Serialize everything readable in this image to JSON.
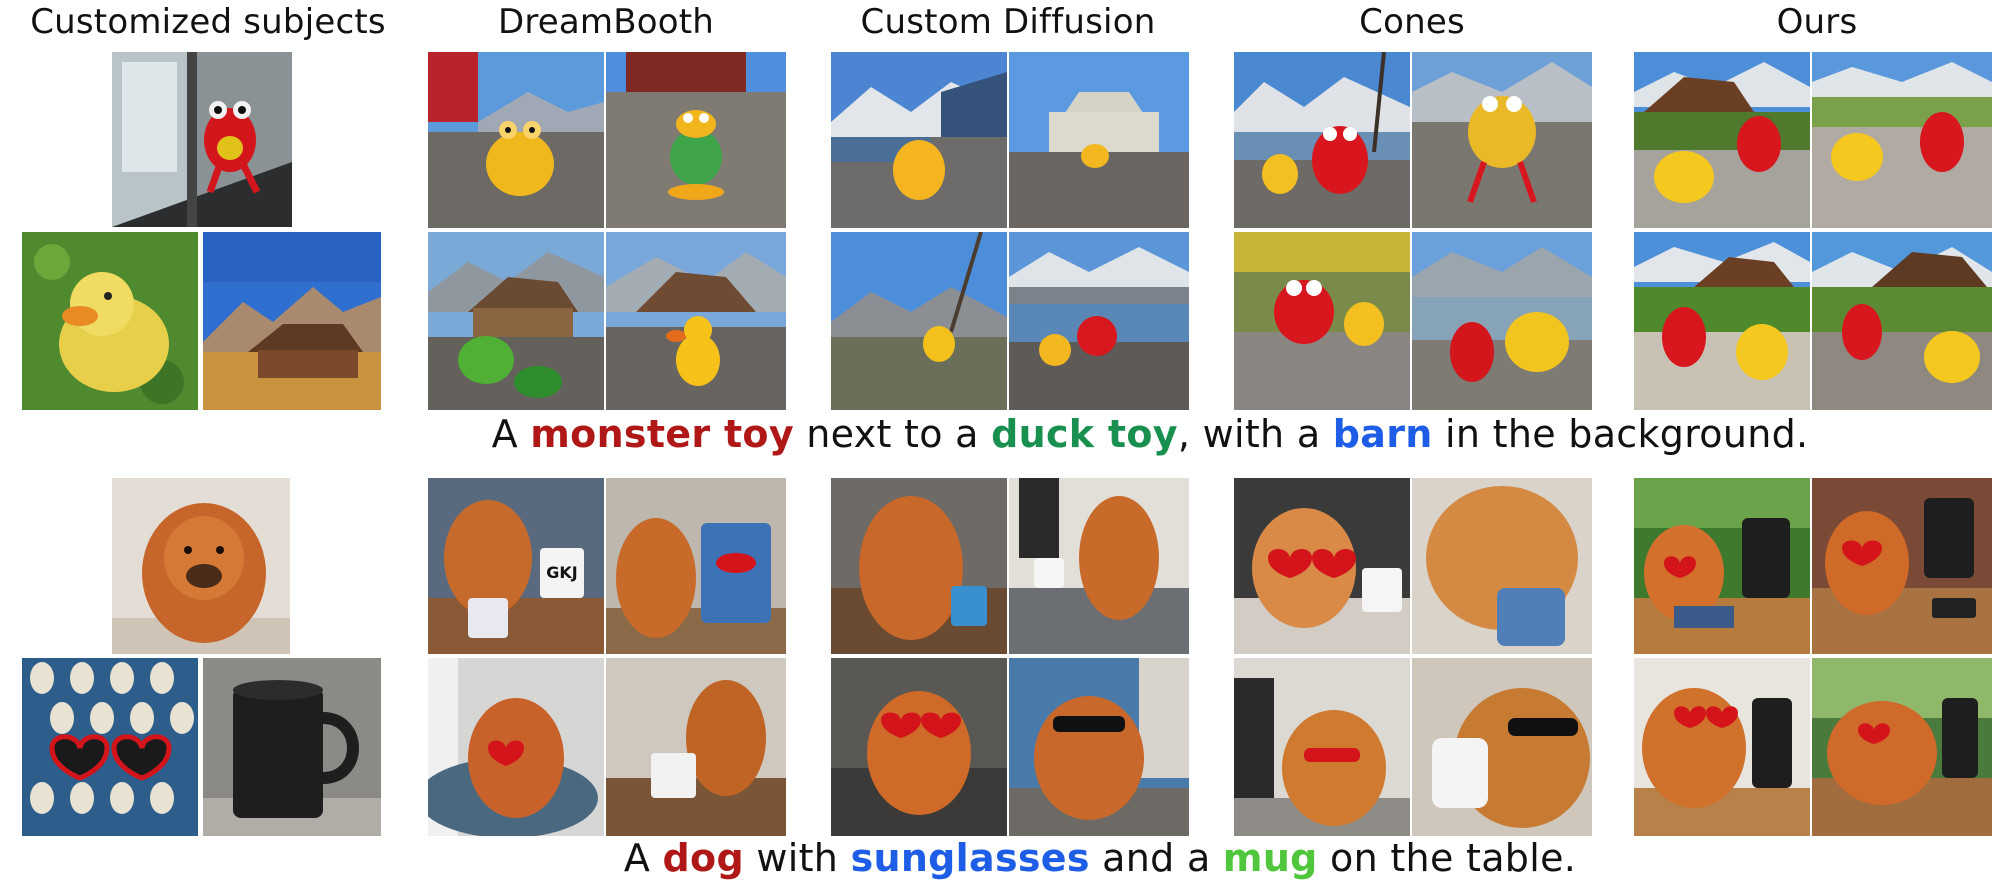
{
  "headers": {
    "customized": "Customized subjects",
    "dreambooth": "DreamBooth",
    "custom_diffusion": "Custom Diffusion",
    "cones": "Cones",
    "ours": "Ours"
  },
  "row1": {
    "caption": {
      "p1": "A ",
      "w1": "monster toy",
      "p2": " next to a ",
      "w2": "duck toy",
      "p3": ", with a ",
      "w3": "barn",
      "p4": " in the background."
    },
    "colors": {
      "w1": "#b01818",
      "w2": "#1a9050",
      "w3": "#1e5de6"
    }
  },
  "row2": {
    "caption": {
      "p1": "A ",
      "w1": "dog",
      "p2": " with ",
      "w2": "sunglasses",
      "p3": " and a ",
      "w3": "mug",
      "p4": " on the table."
    },
    "colors": {
      "w1": "#b01818",
      "w2": "#1e5de6",
      "w3": "#4fc63b"
    }
  },
  "mug_label": "GKJ"
}
